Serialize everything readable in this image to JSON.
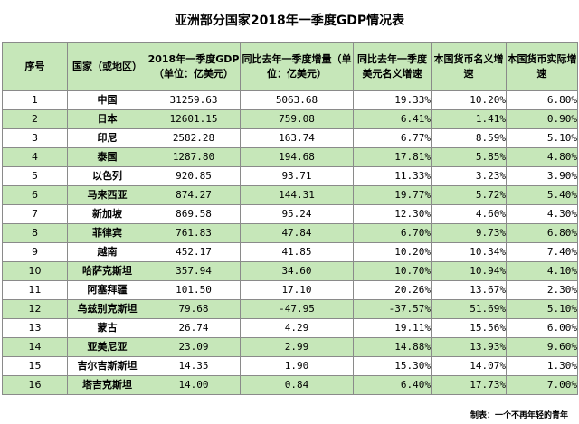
{
  "title": "亚洲部分国家2018年一季度GDP情况表",
  "headers": [
    "序号",
    "国家（或地区）",
    "2018年一季度GDP（单位：亿美元）",
    "同比去年一季度增量（单位：亿美元）",
    "同比去年一季度美元名义增速",
    "本国货币名义增速",
    "本国货币实际增速"
  ],
  "rows": [
    {
      "idx": "1",
      "country": "中国",
      "gdp": "31259.63",
      "increase": "5063.68",
      "usd_nominal": "19.33%",
      "local_nominal": "10.20%",
      "local_real": "6.80%"
    },
    {
      "idx": "2",
      "country": "日本",
      "gdp": "12601.15",
      "increase": "759.08",
      "usd_nominal": "6.41%",
      "local_nominal": "1.41%",
      "local_real": "0.90%"
    },
    {
      "idx": "3",
      "country": "印尼",
      "gdp": "2582.28",
      "increase": "163.74",
      "usd_nominal": "6.77%",
      "local_nominal": "8.59%",
      "local_real": "5.10%"
    },
    {
      "idx": "4",
      "country": "泰国",
      "gdp": "1287.80",
      "increase": "194.68",
      "usd_nominal": "17.81%",
      "local_nominal": "5.85%",
      "local_real": "4.80%"
    },
    {
      "idx": "5",
      "country": "以色列",
      "gdp": "920.85",
      "increase": "93.71",
      "usd_nominal": "11.33%",
      "local_nominal": "3.23%",
      "local_real": "3.90%"
    },
    {
      "idx": "6",
      "country": "马来西亚",
      "gdp": "874.27",
      "increase": "144.31",
      "usd_nominal": "19.77%",
      "local_nominal": "5.72%",
      "local_real": "5.40%"
    },
    {
      "idx": "7",
      "country": "新加坡",
      "gdp": "869.58",
      "increase": "95.24",
      "usd_nominal": "12.30%",
      "local_nominal": "4.60%",
      "local_real": "4.30%"
    },
    {
      "idx": "8",
      "country": "菲律宾",
      "gdp": "761.83",
      "increase": "47.84",
      "usd_nominal": "6.70%",
      "local_nominal": "9.73%",
      "local_real": "6.80%"
    },
    {
      "idx": "9",
      "country": "越南",
      "gdp": "452.17",
      "increase": "41.85",
      "usd_nominal": "10.20%",
      "local_nominal": "10.34%",
      "local_real": "7.40%"
    },
    {
      "idx": "10",
      "country": "哈萨克斯坦",
      "gdp": "357.94",
      "increase": "34.60",
      "usd_nominal": "10.70%",
      "local_nominal": "10.94%",
      "local_real": "4.10%"
    },
    {
      "idx": "11",
      "country": "阿塞拜疆",
      "gdp": "101.50",
      "increase": "17.10",
      "usd_nominal": "20.26%",
      "local_nominal": "13.67%",
      "local_real": "2.30%"
    },
    {
      "idx": "12",
      "country": "乌兹别克斯坦",
      "gdp": "79.68",
      "increase": "-47.95",
      "usd_nominal": "-37.57%",
      "local_nominal": "51.69%",
      "local_real": "5.10%"
    },
    {
      "idx": "13",
      "country": "蒙古",
      "gdp": "26.74",
      "increase": "4.29",
      "usd_nominal": "19.11%",
      "local_nominal": "15.56%",
      "local_real": "6.00%"
    },
    {
      "idx": "14",
      "country": "亚美尼亚",
      "gdp": "23.09",
      "increase": "2.99",
      "usd_nominal": "14.88%",
      "local_nominal": "13.93%",
      "local_real": "9.60%"
    },
    {
      "idx": "15",
      "country": "吉尔吉斯斯坦",
      "gdp": "14.35",
      "increase": "1.90",
      "usd_nominal": "15.30%",
      "local_nominal": "14.07%",
      "local_real": "1.30%"
    },
    {
      "idx": "16",
      "country": "塔吉克斯坦",
      "gdp": "14.00",
      "increase": "0.84",
      "usd_nominal": "6.40%",
      "local_nominal": "17.73%",
      "local_real": "7.00%"
    }
  ],
  "footer": "制表：一个不再年轻的青年",
  "colors": {
    "row_alt": "#c6e7b9",
    "border": "#8a8a8a"
  }
}
